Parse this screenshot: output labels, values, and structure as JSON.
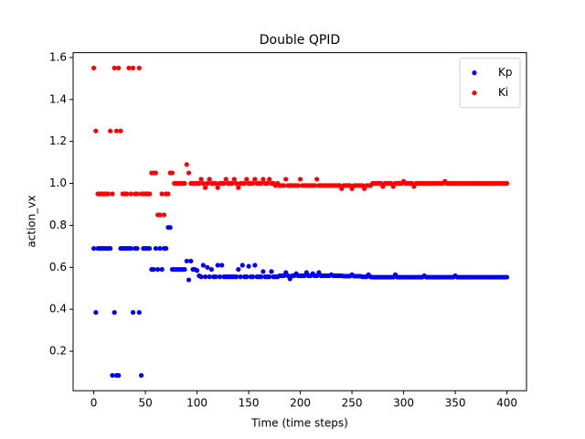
{
  "chart_data": {
    "type": "scatter",
    "title": "Double QPID",
    "xlabel": "Time (time steps)",
    "ylabel": "action_vx",
    "x": [
      0,
      2,
      4,
      6,
      8,
      10,
      12,
      14,
      16,
      18,
      20,
      22,
      24,
      26,
      28,
      30,
      32,
      34,
      36,
      38,
      40,
      42,
      44,
      46,
      48,
      50,
      52,
      54,
      56,
      58,
      60,
      62,
      64,
      66,
      68,
      70,
      72,
      74,
      76,
      78,
      80,
      82,
      84,
      86,
      88,
      90,
      92,
      94,
      96,
      98,
      100,
      102,
      104,
      106,
      108,
      110,
      112,
      114,
      116,
      118,
      120,
      122,
      124,
      126,
      128,
      130,
      132,
      134,
      136,
      138,
      140,
      142,
      144,
      146,
      148,
      150,
      152,
      154,
      156,
      158,
      160,
      162,
      164,
      166,
      168,
      170,
      172,
      174,
      176,
      178,
      180,
      182,
      184,
      186,
      188,
      190,
      192,
      194,
      196,
      198,
      200,
      202,
      204,
      206,
      208,
      210,
      212,
      214,
      216,
      218,
      220,
      222,
      224,
      226,
      228,
      230,
      232,
      234,
      236,
      238,
      240,
      242,
      244,
      246,
      248,
      250,
      252,
      254,
      256,
      258,
      260,
      262,
      264,
      266,
      268,
      270,
      272,
      274,
      276,
      278,
      280,
      282,
      284,
      286,
      288,
      290,
      292,
      294,
      296,
      298,
      300,
      302,
      304,
      306,
      308,
      310,
      312,
      314,
      316,
      318,
      320,
      322,
      324,
      326,
      328,
      330,
      332,
      334,
      336,
      338,
      340,
      342,
      344,
      346,
      348,
      350,
      352,
      354,
      356,
      358,
      360,
      362,
      364,
      366,
      368,
      370,
      372,
      374,
      376,
      378,
      380,
      382,
      384,
      386,
      388,
      390,
      392,
      394,
      396,
      398,
      400
    ],
    "series": [
      {
        "name": "Kp",
        "color": "#0000ff",
        "values": [
          0.69,
          0.385,
          0.69,
          0.69,
          0.69,
          0.69,
          0.69,
          0.69,
          0.69,
          0.085,
          0.385,
          0.085,
          0.085,
          0.69,
          0.69,
          0.69,
          0.69,
          0.69,
          0.69,
          0.385,
          0.69,
          0.69,
          0.385,
          0.085,
          0.69,
          0.69,
          0.69,
          0.69,
          0.59,
          0.59,
          0.69,
          0.59,
          0.69,
          0.59,
          0.69,
          0.69,
          0.79,
          0.79,
          0.59,
          0.59,
          0.59,
          0.59,
          0.59,
          0.59,
          0.59,
          0.63,
          0.54,
          0.63,
          0.59,
          0.59,
          0.585,
          0.56,
          0.555,
          0.61,
          0.555,
          0.6,
          0.555,
          0.59,
          0.555,
          0.555,
          0.61,
          0.555,
          0.61,
          0.555,
          0.555,
          0.555,
          0.555,
          0.555,
          0.555,
          0.555,
          0.59,
          0.555,
          0.61,
          0.555,
          0.555,
          0.605,
          0.555,
          0.555,
          0.61,
          0.555,
          0.555,
          0.555,
          0.58,
          0.555,
          0.555,
          0.555,
          0.58,
          0.555,
          0.555,
          0.555,
          0.56,
          0.56,
          0.56,
          0.575,
          0.56,
          0.545,
          0.56,
          0.56,
          0.57,
          0.56,
          0.56,
          0.56,
          0.56,
          0.575,
          0.56,
          0.56,
          0.57,
          0.56,
          0.56,
          0.575,
          0.56,
          0.56,
          0.56,
          0.56,
          0.56,
          0.565,
          0.56,
          0.56,
          0.56,
          0.56,
          0.56,
          0.558,
          0.558,
          0.558,
          0.558,
          0.565,
          0.558,
          0.558,
          0.558,
          0.558,
          0.555,
          0.555,
          0.555,
          0.565,
          0.555,
          0.553,
          0.553,
          0.553,
          0.553,
          0.553,
          0.553,
          0.553,
          0.553,
          0.553,
          0.553,
          0.553,
          0.565,
          0.553,
          0.553,
          0.553,
          0.553,
          0.553,
          0.553,
          0.553,
          0.553,
          0.553,
          0.553,
          0.553,
          0.553,
          0.553,
          0.56,
          0.553,
          0.553,
          0.553,
          0.553,
          0.553,
          0.553,
          0.553,
          0.553,
          0.553,
          0.553,
          0.553,
          0.553,
          0.553,
          0.553,
          0.56,
          0.553,
          0.553,
          0.553,
          0.553,
          0.553,
          0.553,
          0.553,
          0.553,
          0.553,
          0.553,
          0.553,
          0.553,
          0.553,
          0.553,
          0.553,
          0.553,
          0.553,
          0.553,
          0.553,
          0.553,
          0.553,
          0.553,
          0.553,
          0.553,
          0.553
        ]
      },
      {
        "name": "Ki",
        "color": "#ff0000",
        "values": [
          1.55,
          1.25,
          0.95,
          0.95,
          0.95,
          0.95,
          0.95,
          0.95,
          1.25,
          0.95,
          1.55,
          1.25,
          1.55,
          1.25,
          0.95,
          0.95,
          0.95,
          1.55,
          0.95,
          1.55,
          0.95,
          0.95,
          1.55,
          0.95,
          0.95,
          0.95,
          0.95,
          0.95,
          1.05,
          1.05,
          1.05,
          0.85,
          0.85,
          0.95,
          0.85,
          0.95,
          0.95,
          1.05,
          1.05,
          1.0,
          1.0,
          1.0,
          1.0,
          1.0,
          1.0,
          1.09,
          1.05,
          1.0,
          1.0,
          1.0,
          1.0,
          1.0,
          1.02,
          1.0,
          0.98,
          1.0,
          1.02,
          1.0,
          1.0,
          1.0,
          0.98,
          1.0,
          1.0,
          1.0,
          1.02,
          1.0,
          1.0,
          1.0,
          1.02,
          1.0,
          0.98,
          1.0,
          1.0,
          1.0,
          1.02,
          1.0,
          1.0,
          1.0,
          1.02,
          1.0,
          1.0,
          1.0,
          1.02,
          1.0,
          1.0,
          1.02,
          1.0,
          1.0,
          0.99,
          1.0,
          0.99,
          0.99,
          0.99,
          1.02,
          0.99,
          0.99,
          0.99,
          0.99,
          0.99,
          0.99,
          1.02,
          0.99,
          0.99,
          0.99,
          0.99,
          0.99,
          0.99,
          0.99,
          1.02,
          0.99,
          0.99,
          0.99,
          0.99,
          0.99,
          0.99,
          0.99,
          0.99,
          0.99,
          0.99,
          0.99,
          0.975,
          0.99,
          0.99,
          0.99,
          0.99,
          0.975,
          0.99,
          0.99,
          0.99,
          0.99,
          0.99,
          0.975,
          0.99,
          0.99,
          0.99,
          1.0,
          1.0,
          1.0,
          1.0,
          1.0,
          0.985,
          1.0,
          1.0,
          1.0,
          1.0,
          0.985,
          1.0,
          1.0,
          1.0,
          1.0,
          1.01,
          1.0,
          1.0,
          1.0,
          1.0,
          0.985,
          1.0,
          1.0,
          1.0,
          1.0,
          1.0,
          1.0,
          1.0,
          1.0,
          1.0,
          1.0,
          1.0,
          1.0,
          1.0,
          1.0,
          1.01,
          1.0,
          1.0,
          1.0,
          1.0,
          1.0,
          1.0,
          1.0,
          1.0,
          1.0,
          1.0,
          1.0,
          1.0,
          1.0,
          1.0,
          1.0,
          1.0,
          1.0,
          1.0,
          1.0,
          1.0,
          1.0,
          1.0,
          1.0,
          1.0,
          1.0,
          1.0,
          1.0,
          1.0,
          1.0,
          1.0
        ]
      }
    ],
    "xlim": [
      -20,
      419
    ],
    "ylim": [
      0.012,
      1.623
    ],
    "xticks": [
      0,
      50,
      100,
      150,
      200,
      250,
      300,
      350,
      400
    ],
    "yticks": [
      0.2,
      0.4,
      0.6,
      0.8,
      {
        "value": 1,
        "label": "1.0"
      },
      1.2,
      1.4,
      1.6
    ],
    "legend": "upper right"
  }
}
